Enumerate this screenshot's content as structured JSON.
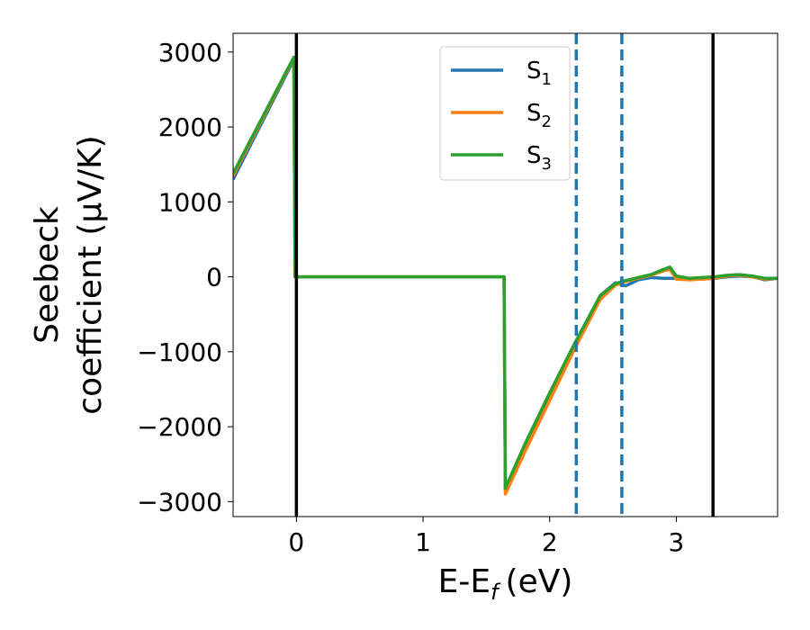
{
  "chart_data": {
    "type": "line",
    "title": "",
    "xlabel": "E-E",
    "xlabel_sub": "f",
    "xlabel_unit": "(eV)",
    "ylabel_line1": "Seebeck",
    "ylabel_line2": "coefficient  (μV/K)",
    "xlim": [
      -0.5,
      3.8
    ],
    "ylim": [
      -3200,
      3250
    ],
    "x_ticks": [
      0,
      1,
      2,
      3
    ],
    "x_tick_labels": [
      "0",
      "1",
      "2",
      "3"
    ],
    "y_ticks": [
      3000,
      2000,
      1000,
      0,
      -1000,
      -2000,
      -3000
    ],
    "y_tick_labels": [
      "3000",
      "2000",
      "1000",
      "0",
      "−1000",
      "−2000",
      "−3000"
    ],
    "grid": false,
    "legend_position": "top-right",
    "vlines": [
      {
        "x": 0.0,
        "style": "solid",
        "color": "#000000"
      },
      {
        "x": 3.29,
        "style": "solid",
        "color": "#000000"
      },
      {
        "x": 2.21,
        "style": "dashed",
        "color": "#1f77b4"
      },
      {
        "x": 2.57,
        "style": "dashed",
        "color": "#1f77b4"
      }
    ],
    "series": [
      {
        "name": "S",
        "sub": "1",
        "color": "#1f77b4",
        "x": [
          -0.5,
          -0.02,
          -0.01,
          1.64,
          1.65,
          1.8,
          2.0,
          2.2,
          2.4,
          2.52,
          2.6,
          2.7,
          2.8,
          2.9,
          3.0,
          3.1,
          3.2,
          3.3,
          3.4,
          3.5,
          3.6,
          3.7,
          3.8
        ],
        "y": [
          1300,
          2900,
          0,
          0,
          -2850,
          -2300,
          -1600,
          -900,
          -250,
          -80,
          -120,
          -40,
          -10,
          -20,
          -20,
          -25,
          -30,
          -20,
          0,
          10,
          0,
          -40,
          -20
        ]
      },
      {
        "name": "S",
        "sub": "2",
        "color": "#ff7f0e",
        "x": [
          -0.5,
          -0.02,
          -0.01,
          1.64,
          1.65,
          1.8,
          2.0,
          2.2,
          2.4,
          2.52,
          2.6,
          2.7,
          2.8,
          2.9,
          2.95,
          3.0,
          3.1,
          3.2,
          3.3,
          3.4,
          3.5,
          3.6,
          3.7,
          3.8
        ],
        "y": [
          1350,
          2920,
          0,
          0,
          -2900,
          -2350,
          -1650,
          -950,
          -300,
          -110,
          -60,
          -20,
          20,
          80,
          100,
          -30,
          -40,
          -30,
          -20,
          10,
          20,
          0,
          -30,
          -20
        ]
      },
      {
        "name": "S",
        "sub": "3",
        "color": "#2ca02c",
        "x": [
          -0.5,
          -0.02,
          -0.01,
          1.64,
          1.65,
          1.8,
          2.0,
          2.2,
          2.4,
          2.52,
          2.6,
          2.7,
          2.8,
          2.9,
          2.95,
          3.0,
          3.1,
          3.2,
          3.3,
          3.4,
          3.5,
          3.6,
          3.7,
          3.8
        ],
        "y": [
          1380,
          2930,
          0,
          0,
          -2820,
          -2250,
          -1550,
          -880,
          -250,
          -90,
          -50,
          -10,
          30,
          100,
          130,
          10,
          -20,
          -10,
          0,
          20,
          30,
          10,
          -20,
          -20
        ]
      }
    ]
  }
}
